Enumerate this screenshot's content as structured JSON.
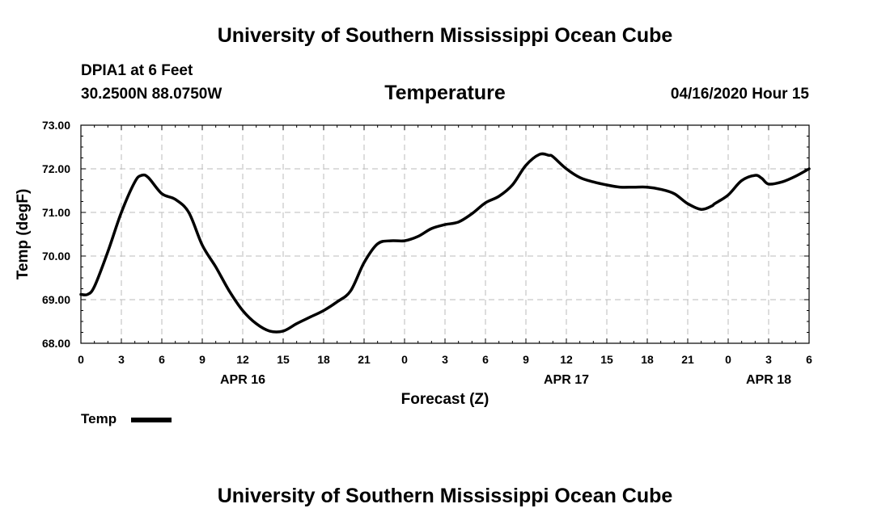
{
  "page": {
    "top_title": "University of Southern Mississippi Ocean Cube",
    "bottom_title": "University of Southern Mississippi Ocean Cube",
    "station": "DPIA1 at 6 Feet",
    "coords": "30.2500N 88.0750W",
    "chart_title": "Temperature",
    "datetime": "04/16/2020 Hour 15",
    "legend_label": "Temp"
  },
  "chart_data": {
    "type": "line",
    "title": "Temperature",
    "xlabel": "Forecast (Z)",
    "ylabel": "Temp (degF)",
    "ylim": [
      68.0,
      73.0
    ],
    "yticks": [
      "68.00",
      "69.00",
      "70.00",
      "71.00",
      "72.00",
      "73.00"
    ],
    "xlim": [
      0,
      54
    ],
    "xtick_labels": [
      "0",
      "3",
      "6",
      "9",
      "12",
      "15",
      "18",
      "21",
      "0",
      "3",
      "6",
      "9",
      "12",
      "15",
      "18",
      "21",
      "0",
      "3",
      "6"
    ],
    "date_labels": [
      {
        "text": "APR 16",
        "at_hour": 12
      },
      {
        "text": "APR 17",
        "at_hour": 36
      },
      {
        "text": "APR 18",
        "at_hour": 51
      }
    ],
    "grid": true,
    "legend": "bottom-left",
    "series": [
      {
        "name": "Temp",
        "color": "#000000",
        "x": [
          0,
          0.5,
          1,
          2,
          3,
          4,
          4.5,
          5,
          6,
          7,
          8,
          9,
          10,
          11,
          12,
          13,
          14,
          15,
          16,
          17,
          18,
          19,
          20,
          21,
          22,
          23,
          24,
          25,
          26,
          27,
          28,
          29,
          30,
          31,
          32,
          33,
          34,
          34.7,
          35,
          36,
          37,
          38,
          39,
          40,
          41,
          42,
          43,
          44,
          45,
          46,
          46.8,
          47,
          48,
          49,
          50,
          50.5,
          51,
          52,
          53,
          54
        ],
        "y": [
          69.12,
          69.12,
          69.3,
          70.1,
          71.0,
          71.7,
          71.85,
          71.8,
          71.43,
          71.3,
          71.0,
          70.25,
          69.75,
          69.2,
          68.75,
          68.45,
          68.28,
          68.28,
          68.45,
          68.6,
          68.75,
          68.95,
          69.2,
          69.85,
          70.28,
          70.35,
          70.35,
          70.45,
          70.63,
          70.72,
          70.78,
          70.97,
          71.22,
          71.37,
          71.63,
          72.08,
          72.33,
          72.31,
          72.28,
          72.0,
          71.8,
          71.7,
          71.63,
          71.58,
          71.58,
          71.58,
          71.53,
          71.43,
          71.2,
          71.07,
          71.15,
          71.2,
          71.4,
          71.73,
          71.85,
          71.78,
          71.65,
          71.7,
          71.83,
          72.0
        ]
      }
    ]
  }
}
